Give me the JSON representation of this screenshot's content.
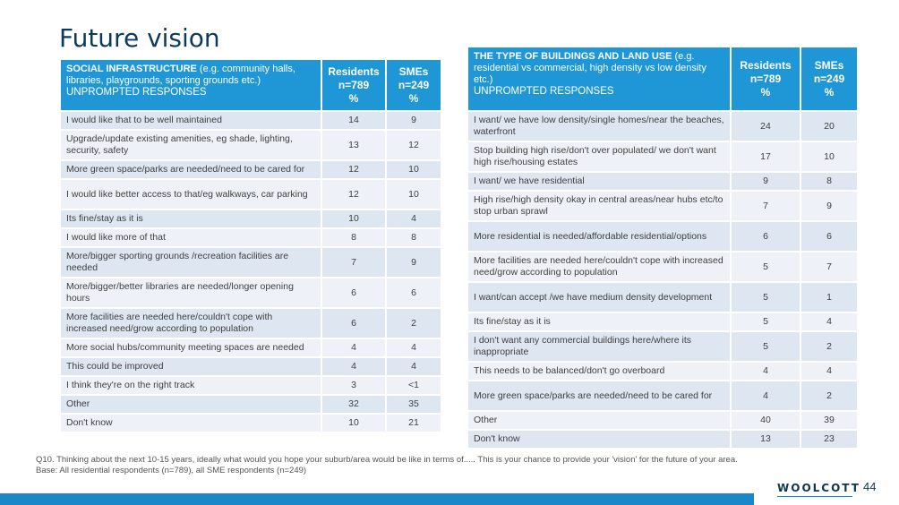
{
  "title": "Future vision",
  "left": {
    "header": {
      "bold": "SOCIAL INFRASTRUCTURE",
      "rest": " (e.g. community halls, libraries, playgrounds, sporting grounds etc.)",
      "sub": "UNPROMPTED RESPONSES",
      "col1": "Residents n=789 %",
      "col2": "SMEs n=249 %"
    },
    "rows": [
      {
        "label": "I would like that to be well maintained",
        "res": "14",
        "sme": "9"
      },
      {
        "label": "Upgrade/update existing amenities, eg shade, lighting, security, safety",
        "res": "13",
        "sme": "12"
      },
      {
        "label": "More green space/parks are needed/need to be cared for",
        "res": "12",
        "sme": "10"
      },
      {
        "label": "I would like better access to that/eg walkways, car parking",
        "res": "12",
        "sme": "10"
      },
      {
        "label": "Its fine/stay as it is",
        "res": "10",
        "sme": "4"
      },
      {
        "label": "I would like more of that",
        "res": "8",
        "sme": "8"
      },
      {
        "label": "More/bigger sporting grounds /recreation facilities are needed",
        "res": "7",
        "sme": "9"
      },
      {
        "label": "More/bigger/better libraries are needed/longer opening hours",
        "res": "6",
        "sme": "6"
      },
      {
        "label": "More facilities are needed here/couldn't cope with increased need/grow according to population",
        "res": "6",
        "sme": "2"
      },
      {
        "label": "More social hubs/community meeting spaces are needed",
        "res": "4",
        "sme": "4"
      },
      {
        "label": "This could be improved",
        "res": "4",
        "sme": "4"
      },
      {
        "label": "I think they're on the right track",
        "res": "3",
        "sme": "<1"
      },
      {
        "label": "Other",
        "res": "32",
        "sme": "35"
      },
      {
        "label": "Don't know",
        "res": "10",
        "sme": "21"
      }
    ]
  },
  "right": {
    "header": {
      "bold": "THE TYPE OF BUILDINGS AND LAND USE",
      "rest": " (e.g. residential vs commercial, high density vs low density etc.)",
      "sub": "UNPROMPTED RESPONSES",
      "col1": "Residents n=789 %",
      "col2": "SMEs n=249 %"
    },
    "rows": [
      {
        "label": "I want/ we have low density/single homes/near the beaches, waterfront",
        "res": "24",
        "sme": "20"
      },
      {
        "label": "Stop building high rise/don't over populated/ we don't want high rise/housing estates",
        "res": "17",
        "sme": "10"
      },
      {
        "label": "I want/ we have residential",
        "res": "9",
        "sme": "8"
      },
      {
        "label": "High rise/high density okay in central areas/near hubs etc/to stop urban sprawl",
        "res": "7",
        "sme": "9"
      },
      {
        "label": "More residential is needed/affordable residential/options",
        "res": "6",
        "sme": "6"
      },
      {
        "label": "More facilities are needed here/couldn't cope with increased need/grow according to population",
        "res": "5",
        "sme": "7"
      },
      {
        "label": "I want/can accept /we have medium density development",
        "res": "5",
        "sme": "1"
      },
      {
        "label": "Its fine/stay as it is",
        "res": "5",
        "sme": "4"
      },
      {
        "label": "I don't want any commercial buildings here/where its inappropriate",
        "res": "5",
        "sme": "2"
      },
      {
        "label": "This needs to be balanced/don't go overboard",
        "res": "4",
        "sme": "4"
      },
      {
        "label": "More green space/parks are needed/need to be cared for",
        "res": "4",
        "sme": "2"
      },
      {
        "label": "Other",
        "res": "40",
        "sme": "39"
      },
      {
        "label": "Don't know",
        "res": "13",
        "sme": "23"
      }
    ]
  },
  "footnote": {
    "q": "Q10. Thinking about the next 10-15 years, ideally what would you hope your suburb/area would be like in terms of..... This is your chance to provide your 'vision' for the future of your area.",
    "base": "Base:  All residential respondents (n=789), all SME respondents (n=249)"
  },
  "logo": "WOOLCOTT",
  "page_number": "44",
  "colors": {
    "header_bg": "#1f97d6",
    "row_odd": "#dde6f1",
    "row_even": "#eef2f8",
    "bar": "#1a87c8"
  }
}
